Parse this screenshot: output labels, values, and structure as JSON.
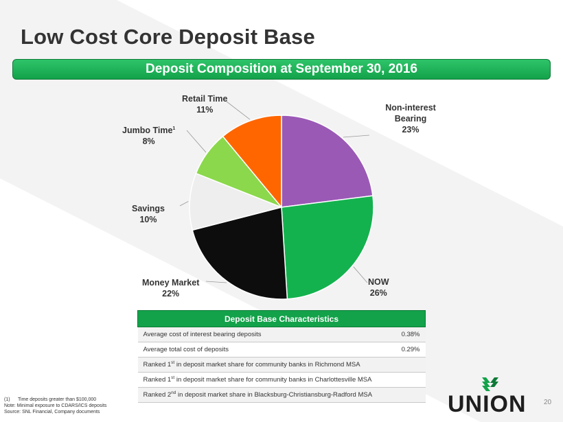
{
  "slide": {
    "title": "Low Cost Core Deposit Base",
    "banner": "Deposit Composition at September 30, 2016",
    "page_number": "20"
  },
  "chart_data": {
    "type": "pie",
    "slices": [
      {
        "label": "Non-interest Bearing",
        "value": 23,
        "pct_label": "23%",
        "color": "#9b59b6"
      },
      {
        "label": "NOW",
        "value": 26,
        "pct_label": "26%",
        "color": "#13b24e"
      },
      {
        "label": "Money Market",
        "value": 22,
        "pct_label": "22%",
        "color": "#0d0d0d"
      },
      {
        "label": "Savings",
        "value": 10,
        "pct_label": "10%",
        "color": "#eeeeee"
      },
      {
        "label": "Jumbo Time",
        "value": 8,
        "pct_label": "8%",
        "color": "#8bd84c"
      },
      {
        "label": "Retail Time",
        "value": 11,
        "pct_label": "11%",
        "color": "#ff6600"
      }
    ],
    "jumbo_footnote_marker": "1"
  },
  "table": {
    "header": "Deposit Base Characteristics",
    "rows": [
      {
        "pre": "Average cost of interest bearing deposits",
        "value": "0.38%"
      },
      {
        "pre": "Average total cost of deposits",
        "value": "0.29%"
      },
      {
        "pre": "Ranked 1",
        "sup": "st",
        "post": " in deposit market share for community banks in Richmond MSA"
      },
      {
        "pre": "Ranked 1",
        "sup": "st",
        "post": " in deposit market share for community banks in Charlottesville MSA"
      },
      {
        "pre": "Ranked 2",
        "sup": "nd",
        "post": " in deposit market share in Blacksburg-Christiansburg-Radford MSA"
      }
    ]
  },
  "footnotes": {
    "fn1_num": "(1)",
    "fn1_text": "Time deposits greater than $100,000",
    "note": "Note: Minimal exposure to CDARS/ICS deposits",
    "source": "Source: SNL Financial, Company documents"
  },
  "logo": {
    "text": "UNION",
    "color": "#13a24a"
  }
}
